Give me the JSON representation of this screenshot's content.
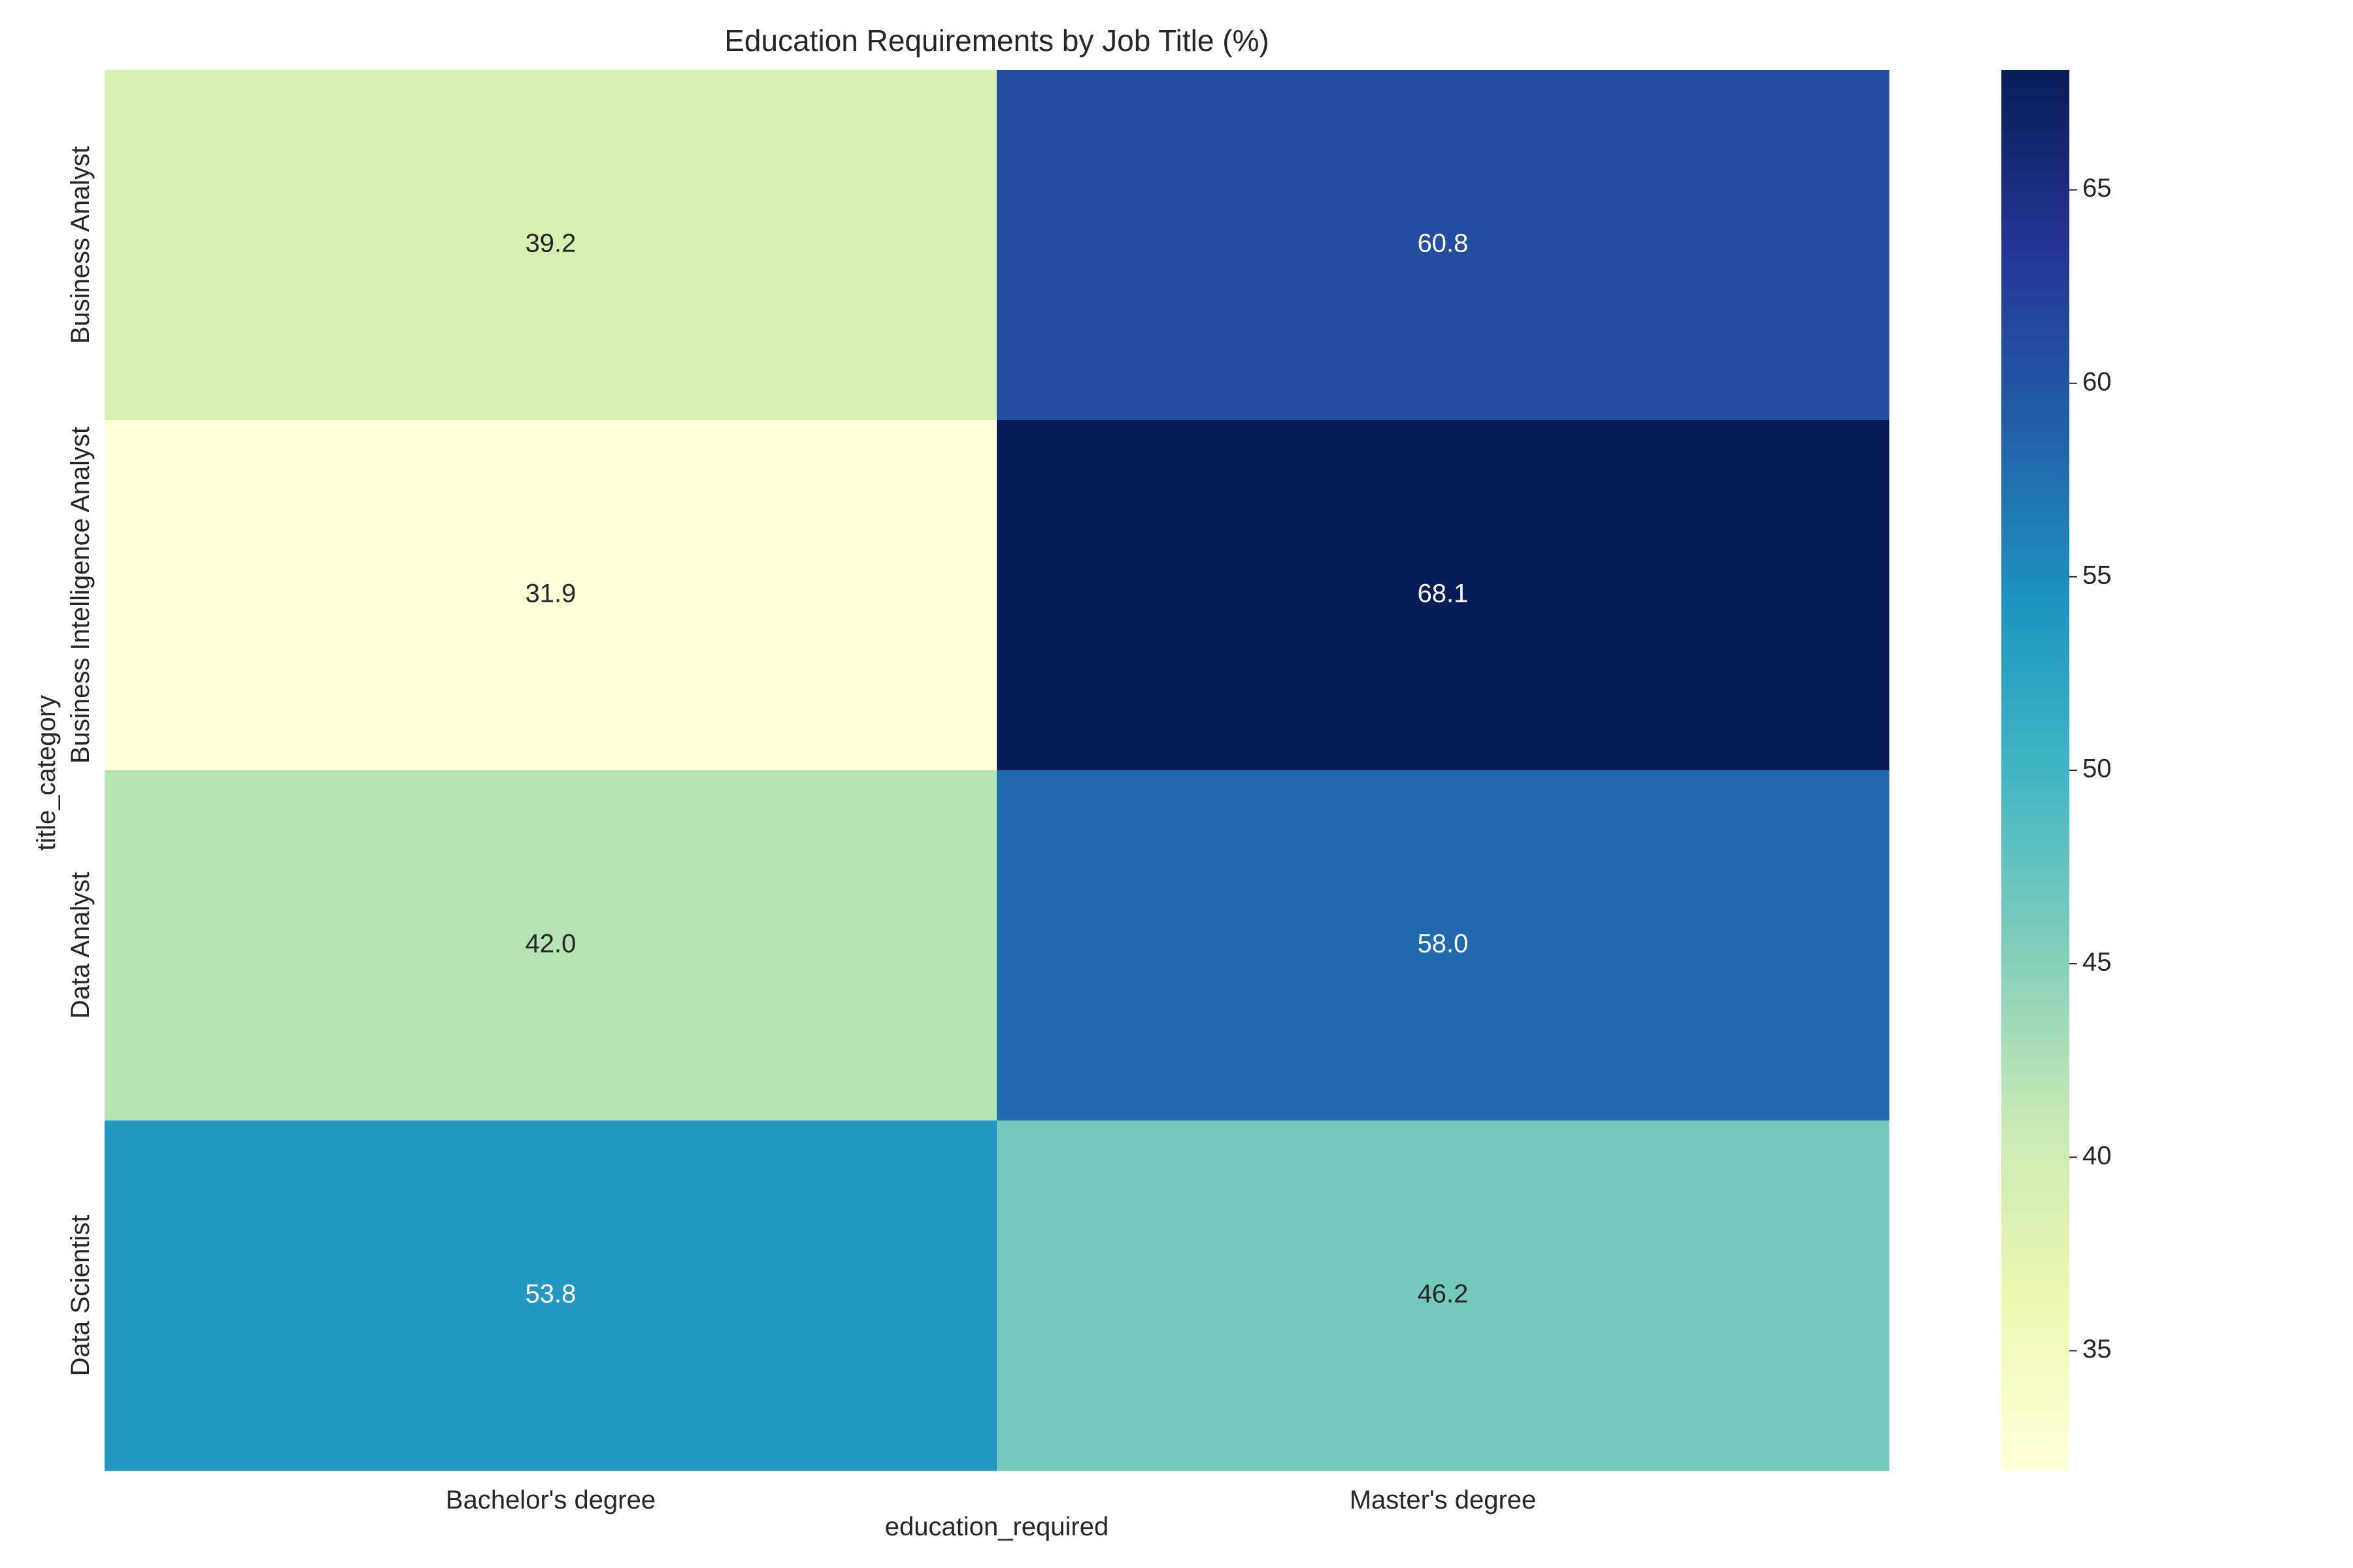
{
  "chart_data": {
    "type": "heatmap",
    "title": "Education Requirements by Job Title (%)",
    "xlabel": "education_required",
    "ylabel": "title_category",
    "x_categories": [
      "Bachelor's degree",
      "Master's degree"
    ],
    "y_categories": [
      "Business Analyst",
      "Business Intelligence Analyst",
      "Data Analyst",
      "Data Scientist"
    ],
    "values": [
      [
        39.2,
        60.8
      ],
      [
        31.9,
        68.1
      ],
      [
        42.0,
        58.0
      ],
      [
        53.8,
        46.2
      ]
    ],
    "value_format": "0.0",
    "colormap": "YlGnBu",
    "colorbar": {
      "range": [
        31.9,
        68.1
      ],
      "ticks": [
        35,
        40,
        45,
        50,
        55,
        60,
        65
      ]
    },
    "colorbar_stops": [
      "#ffffd9",
      "#edf8b1",
      "#c7e9b4",
      "#7fcdbb",
      "#41b6c4",
      "#1d91c0",
      "#225ea8",
      "#253494",
      "#081d58"
    ],
    "legend_position": "right",
    "grid": false
  }
}
